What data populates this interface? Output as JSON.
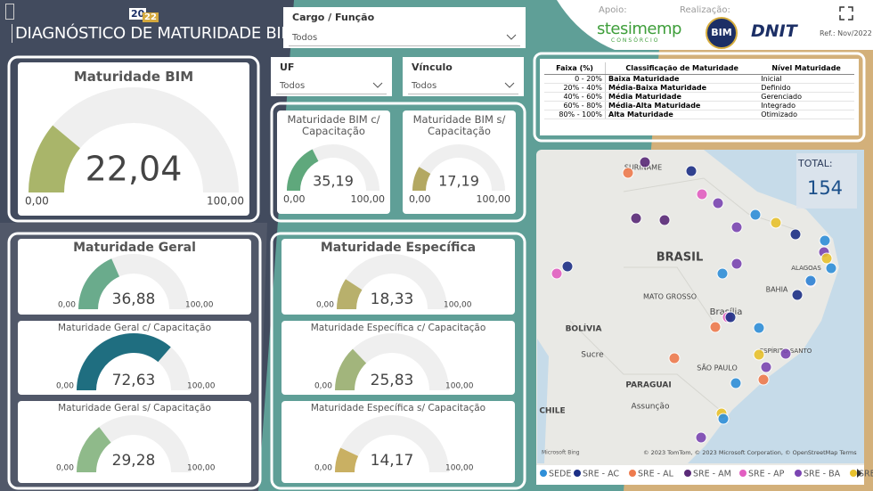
{
  "header": {
    "title": "DIAGNÓSTICO DE MATURIDADE BIM",
    "year_top": "20",
    "year_bottom": "22",
    "support_label": "Apoio:",
    "support_name": "stesimemp",
    "support_sub": "CONSÓRCIO",
    "org_label": "Realização:",
    "org_bim": "BIM",
    "org_dnit": "DNIT",
    "reference": "Ref.: Nov/2022"
  },
  "filters": [
    {
      "label": "Cargo / Função",
      "value": "Todos"
    },
    {
      "label": "UF",
      "value": "Todos"
    },
    {
      "label": "Vínculo",
      "value": "Todos"
    }
  ],
  "maturity_table": {
    "columns": [
      "Faixa (%)",
      "Classificação de Maturidade",
      "Nível Maturidade"
    ],
    "rows": [
      [
        "0 - 20%",
        "Baixa Maturidade",
        "Inicial"
      ],
      [
        "20% - 40%",
        "Média-Baixa Maturidade",
        "Definido"
      ],
      [
        "40% - 60%",
        "Média Maturidade",
        "Gerenciado"
      ],
      [
        "60% - 80%",
        "Média-Alta Maturidade",
        "Integrado"
      ],
      [
        "80% - 100%",
        "Alta Maturidade",
        "Otimizado"
      ]
    ]
  },
  "map": {
    "total_label": "TOTAL:",
    "total": 154,
    "place_labels": [
      "SURINAME",
      "BRASIL",
      "MATO GROSSO",
      "BOLÍVIA",
      "Sucre",
      "PARAGUAI",
      "Assunção",
      "CHILE",
      "Brasília",
      "BAHIA",
      "SÃO PAULO",
      "ESPÍRITO SANTO",
      "ALAGOAS"
    ],
    "attribution": "© 2023 TomTom, © 2023 Microsoft Corporation, © OpenStreetMap  Terms",
    "provider": "Microsoft Bing",
    "legend": [
      {
        "name": "SEDE",
        "color": "#2f8fd8"
      },
      {
        "name": "SRE - AC",
        "color": "#1c2f86"
      },
      {
        "name": "SRE - AL",
        "color": "#ee7b4e"
      },
      {
        "name": "SRE - AM",
        "color": "#5a2a78"
      },
      {
        "name": "SRE - AP",
        "color": "#e25fc1"
      },
      {
        "name": "SRE - BA",
        "color": "#7b45b2"
      },
      {
        "name": "SRE - CE",
        "color": "#e8c22e"
      }
    ]
  },
  "chart_data": [
    {
      "type": "gauge",
      "title": "Maturidade BIM",
      "values": [
        22.04
      ],
      "value_labels": [
        "22,04"
      ],
      "color": "#a9b56a",
      "ylim": [
        0,
        100
      ],
      "yticks": [
        {
          "value": 0,
          "label": "0,00"
        },
        {
          "value": 100,
          "label": "100,00"
        }
      ]
    },
    {
      "type": "gauge",
      "title": "Maturidade BIM c/ Capacitação",
      "values": [
        35.19
      ],
      "value_labels": [
        "35,19"
      ],
      "color": "#5fa87c",
      "ylim": [
        0,
        100
      ],
      "yticks": [
        {
          "value": 0,
          "label": "0,00"
        },
        {
          "value": 100,
          "label": "100,00"
        }
      ]
    },
    {
      "type": "gauge",
      "title": "Maturidade BIM s/ Capacitação",
      "values": [
        17.19
      ],
      "value_labels": [
        "17,19"
      ],
      "color": "#b3a862",
      "ylim": [
        0,
        100
      ],
      "yticks": [
        {
          "value": 0,
          "label": "0,00"
        },
        {
          "value": 100,
          "label": "100,00"
        }
      ]
    },
    {
      "type": "gauge",
      "title": "Maturidade Geral",
      "values": [
        36.88
      ],
      "value_labels": [
        "36,88"
      ],
      "color": "#6aab8c",
      "ylim": [
        0,
        100
      ],
      "yticks": [
        {
          "value": 0,
          "label": "0,00"
        },
        {
          "value": 100,
          "label": "100,00"
        }
      ]
    },
    {
      "type": "gauge",
      "title": "Maturidade Geral c/ Capacitação",
      "values": [
        72.63
      ],
      "value_labels": [
        "72,63"
      ],
      "color": "#1f6e80",
      "ylim": [
        0,
        100
      ],
      "yticks": [
        {
          "value": 0,
          "label": "0,00"
        },
        {
          "value": 100,
          "label": "100,00"
        }
      ]
    },
    {
      "type": "gauge",
      "title": "Maturidade Geral s/ Capacitação",
      "values": [
        29.28
      ],
      "value_labels": [
        "29,28"
      ],
      "color": "#8fba8a",
      "ylim": [
        0,
        100
      ],
      "yticks": [
        {
          "value": 0,
          "label": "0,00"
        },
        {
          "value": 100,
          "label": "100,00"
        }
      ]
    },
    {
      "type": "gauge",
      "title": "Maturidade Específica",
      "values": [
        18.33
      ],
      "value_labels": [
        "18,33"
      ],
      "color": "#b8b06c",
      "ylim": [
        0,
        100
      ],
      "yticks": [
        {
          "value": 0,
          "label": "0,00"
        },
        {
          "value": 100,
          "label": "100,00"
        }
      ]
    },
    {
      "type": "gauge",
      "title": "Maturidade Específica c/ Capacitação",
      "values": [
        25.83
      ],
      "value_labels": [
        "25,83"
      ],
      "color": "#a2b57c",
      "ylim": [
        0,
        100
      ],
      "yticks": [
        {
          "value": 0,
          "label": "0,00"
        },
        {
          "value": 100,
          "label": "100,00"
        }
      ]
    },
    {
      "type": "gauge",
      "title": "Maturidade Específica s/ Capacitação",
      "values": [
        14.17
      ],
      "value_labels": [
        "14,17"
      ],
      "color": "#c9b063",
      "ylim": [
        0,
        100
      ],
      "yticks": [
        {
          "value": 0,
          "label": "0,00"
        },
        {
          "value": 100,
          "label": "100,00"
        }
      ]
    }
  ]
}
